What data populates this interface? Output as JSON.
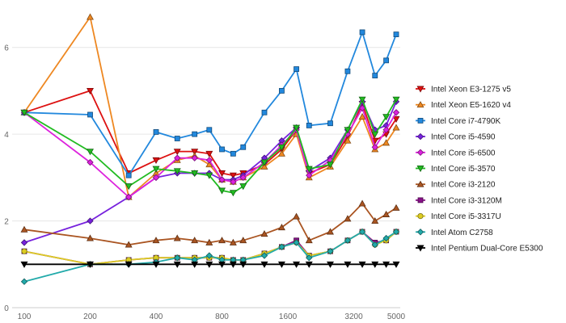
{
  "chart_data": {
    "type": "line",
    "title": "",
    "xlabel": "",
    "ylabel": "",
    "x_scale": "log",
    "xlim": [
      100,
      5000
    ],
    "ylim": [
      0,
      7
    ],
    "x_tick_values": [
      100,
      200,
      400,
      800,
      1600,
      3200,
      5000
    ],
    "x_tick_labels": [
      "100",
      "200",
      "400",
      "800",
      "1600",
      "3200",
      "5000"
    ],
    "y_tick_values": [
      0,
      2,
      4,
      6
    ],
    "y_tick_labels": [
      "0",
      "2",
      "4",
      "6"
    ],
    "grid": "horizontal",
    "legend_position": "right",
    "x": [
      100,
      200,
      300,
      400,
      500,
      600,
      700,
      800,
      900,
      1000,
      1250,
      1500,
      1750,
      2000,
      2500,
      3000,
      3500,
      4000,
      4500,
      5000
    ],
    "series": [
      {
        "name": "Intel Xeon E3-1275 v5",
        "color": "#dd1111",
        "marker": "triangle-down",
        "values": [
          4.5,
          5.0,
          3.1,
          3.4,
          3.6,
          3.6,
          3.55,
          3.1,
          3.05,
          3.1,
          3.3,
          3.65,
          4.1,
          3.1,
          3.3,
          3.95,
          4.7,
          3.85,
          4.0,
          4.35
        ]
      },
      {
        "name": "Intel Xeon E5-1620 v4",
        "color": "#ee8822",
        "marker": "triangle-up",
        "values": [
          4.5,
          6.7,
          2.55,
          3.1,
          3.4,
          3.5,
          3.3,
          2.95,
          2.9,
          3.0,
          3.25,
          3.55,
          4.0,
          3.0,
          3.25,
          3.85,
          4.4,
          3.65,
          3.8,
          4.15
        ]
      },
      {
        "name": "Intel Core i7-4790K",
        "color": "#2288dd",
        "marker": "square",
        "values": [
          4.5,
          4.45,
          3.05,
          4.05,
          3.9,
          4.0,
          4.1,
          3.65,
          3.55,
          3.7,
          4.5,
          5.0,
          5.5,
          4.2,
          4.25,
          5.45,
          6.35,
          5.35,
          5.7,
          6.3
        ]
      },
      {
        "name": "Intel Core i5-4590",
        "color": "#7722dd",
        "marker": "diamond",
        "values": [
          1.5,
          2.0,
          2.55,
          3.0,
          3.1,
          3.1,
          3.1,
          2.95,
          2.95,
          3.05,
          3.45,
          3.85,
          4.15,
          3.15,
          3.45,
          4.1,
          4.75,
          4.1,
          4.2,
          4.75
        ]
      },
      {
        "name": "Intel Core i5-6500",
        "color": "#dd22dd",
        "marker": "diamond",
        "values": [
          4.5,
          3.35,
          2.55,
          3.0,
          3.45,
          3.45,
          3.4,
          2.95,
          2.9,
          3.0,
          3.35,
          3.75,
          4.1,
          3.05,
          3.4,
          4.0,
          4.6,
          3.7,
          4.1,
          4.5
        ]
      },
      {
        "name": "Intel Core i5-3570",
        "color": "#22bb22",
        "marker": "triangle-down",
        "values": [
          4.5,
          3.6,
          2.8,
          3.2,
          3.15,
          3.1,
          3.05,
          2.7,
          2.65,
          2.8,
          3.35,
          3.7,
          4.15,
          3.2,
          3.3,
          4.1,
          4.8,
          4.0,
          4.4,
          4.8
        ]
      },
      {
        "name": "Intel Core i3-2120",
        "color": "#aa5522",
        "marker": "triangle-up",
        "values": [
          1.8,
          1.6,
          1.45,
          1.55,
          1.6,
          1.55,
          1.5,
          1.55,
          1.5,
          1.55,
          1.7,
          1.85,
          2.1,
          1.55,
          1.75,
          2.05,
          2.4,
          2.0,
          2.15,
          2.3
        ]
      },
      {
        "name": "Intel Core i3-3120M",
        "color": "#881188",
        "marker": "square",
        "values": [
          1.3,
          1.0,
          1.1,
          1.15,
          1.15,
          1.15,
          1.15,
          1.15,
          1.1,
          1.1,
          1.25,
          1.4,
          1.55,
          1.2,
          1.3,
          1.55,
          1.75,
          1.5,
          1.55,
          1.75
        ]
      },
      {
        "name": "Intel Core i5-3317U",
        "color": "#ddcc22",
        "marker": "circle",
        "values": [
          1.3,
          1.0,
          1.1,
          1.15,
          1.15,
          1.15,
          1.15,
          1.15,
          1.1,
          1.1,
          1.25,
          1.4,
          1.5,
          1.2,
          1.3,
          1.55,
          1.75,
          1.45,
          1.55,
          1.75
        ]
      },
      {
        "name": "Intel Atom C2758",
        "color": "#22aaaa",
        "marker": "diamond",
        "values": [
          0.6,
          1.0,
          1.0,
          1.05,
          1.15,
          1.1,
          1.2,
          1.1,
          1.1,
          1.1,
          1.2,
          1.4,
          1.5,
          1.15,
          1.3,
          1.55,
          1.75,
          1.45,
          1.6,
          1.75
        ]
      },
      {
        "name": "Intel Pentium Dual-Core E5300",
        "color": "#000000",
        "marker": "triangle-down",
        "values": [
          1.0,
          1.0,
          1.0,
          1.0,
          1.0,
          1.0,
          1.0,
          1.0,
          1.0,
          1.0,
          1.0,
          1.0,
          1.0,
          1.0,
          1.0,
          1.0,
          1.0,
          1.0,
          1.0,
          1.0
        ]
      }
    ]
  }
}
